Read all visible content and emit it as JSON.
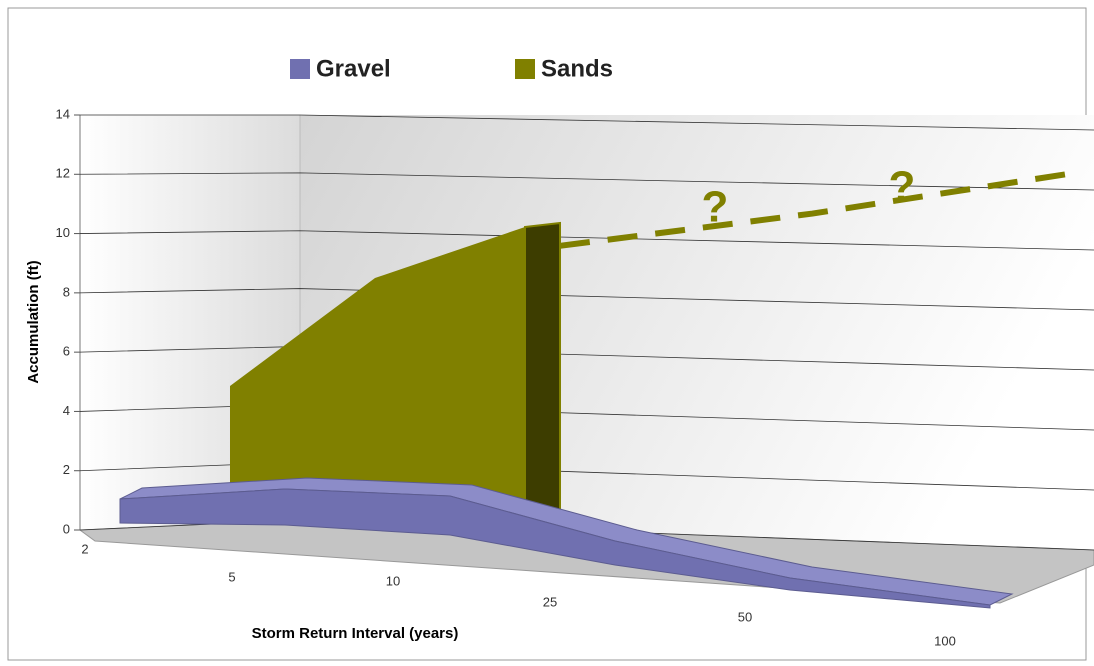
{
  "chart_data": {
    "type": "area3d",
    "categories": [
      "2",
      "5",
      "10",
      "25",
      "50",
      "100"
    ],
    "series": [
      {
        "name": "Gravel",
        "color": "#7070b0",
        "values": [
          0.8,
          1.2,
          1.3,
          0.8,
          0.4,
          0.1
        ]
      },
      {
        "name": "Sands",
        "color": "#808000",
        "values": [
          null,
          4.4,
          8,
          9.7,
          null,
          null
        ]
      }
    ],
    "projection": {
      "color": "#808000",
      "values": [
        null,
        null,
        null,
        9.7,
        11,
        12.5
      ]
    },
    "annotations": [
      "?",
      "?"
    ],
    "ylim": [
      0,
      14
    ],
    "yticks": [
      0,
      2,
      4,
      6,
      8,
      10,
      12,
      14
    ],
    "y_label": "Accumulation (ft)",
    "x_label": "Storm Return Interval (years)",
    "grid": true,
    "legend": "top"
  }
}
